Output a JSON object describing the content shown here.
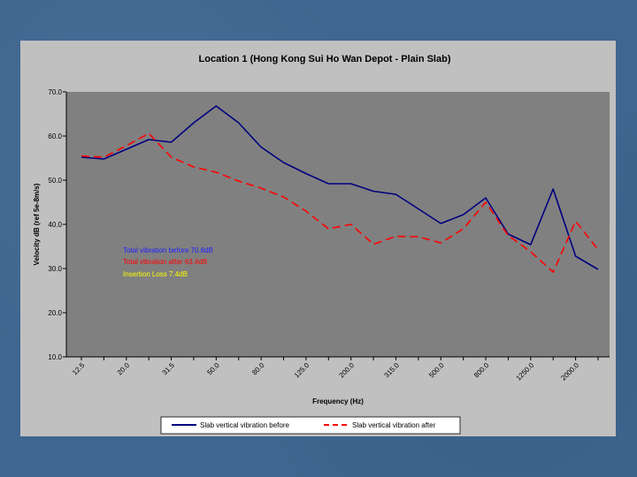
{
  "chart_data": {
    "type": "line",
    "title": "Location 1 (Hong Kong Sui Ho Wan Depot - Plain Slab)",
    "xlabel": "Frequency (Hz)",
    "ylabel": "Velocity dB (ref 5e-8m/s)",
    "ylim": [
      10.0,
      70.0
    ],
    "ytick_labels": [
      "10.0",
      "20.0",
      "30.0",
      "40.0",
      "50.0",
      "60.0",
      "70.0"
    ],
    "ytick_values": [
      10,
      20,
      30,
      40,
      50,
      60,
      70
    ],
    "xtick_labels": [
      "12.5",
      "20.0",
      "31.5",
      "50.0",
      "80.0",
      "125.0",
      "200.0",
      "315.0",
      "500.0",
      "800.0",
      "1250.0",
      "2000.0"
    ],
    "xtick_index": [
      0,
      2,
      4,
      6,
      8,
      10,
      12,
      14,
      16,
      18,
      20,
      22
    ],
    "num_bands": 24,
    "grid": false,
    "legend_position": "bottom",
    "series": [
      {
        "name": "Slab vertical vibration before",
        "color": "#000080",
        "style": "solid",
        "values": [
          55.2,
          54.8,
          57.0,
          59.2,
          58.6,
          63.0,
          66.8,
          63.0,
          57.5,
          54.0,
          51.5,
          49.2,
          49.2,
          47.5,
          46.8,
          43.5,
          40.2,
          42.2,
          46.0,
          37.8,
          35.4,
          48.0,
          32.8,
          29.8
        ]
      },
      {
        "name": "Slab vertical vibration after",
        "color": "#ff0000",
        "style": "dashed",
        "values": [
          55.5,
          55.2,
          57.8,
          60.6,
          55.2,
          53.0,
          51.8,
          49.8,
          48.2,
          46.2,
          43.0,
          39.0,
          40.0,
          35.5,
          37.3,
          37.2,
          35.8,
          39.0,
          45.0,
          37.5,
          33.8,
          29.2,
          40.7,
          34.3
        ]
      }
    ],
    "annotations": [
      {
        "text": "Total vibration before 70.8dB",
        "color": "#2020ff"
      },
      {
        "text": "Total vibration after 63.4dB",
        "color": "#ff0000"
      },
      {
        "text": "Insertion Loss 7.4dB",
        "color": "#ffff00"
      }
    ]
  },
  "colors": {
    "slide_background": "#3f6690",
    "chart_background": "#c0c0c0",
    "plot_background": "#808080",
    "axis_color": "#000000"
  }
}
